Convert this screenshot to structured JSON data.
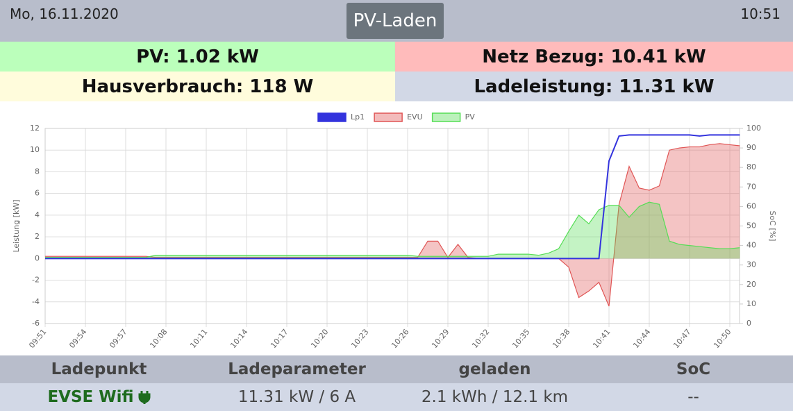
{
  "header": {
    "date": "Mo, 16.11.2020",
    "title": "PV-Laden",
    "time": "10:51"
  },
  "summary": {
    "pv": "PV: 1.02 kW",
    "grid": "Netz Bezug: 10.41 kW",
    "house": "Hausverbrauch: 118 W",
    "charge": "Ladeleistung: 11.31 kW"
  },
  "table": {
    "headers": [
      "Ladepunkt",
      "Ladeparameter",
      "geladen",
      "SoC"
    ],
    "rows": [
      [
        "EVSE Wifi",
        "11.31 kW / 6 A",
        "2.1 kWh / 12.1 km",
        "--"
      ]
    ]
  },
  "chart_data": {
    "type": "line",
    "y_label": "Leistung [kW]",
    "y2_label": "SoC [%]",
    "categories": [
      "09:51",
      null,
      null,
      null,
      "09:54",
      null,
      null,
      null,
      "09:57",
      null,
      null,
      null,
      "10:08",
      null,
      null,
      null,
      "10:11",
      null,
      null,
      null,
      "10:14",
      null,
      null,
      null,
      "10:17",
      null,
      null,
      null,
      "10:20",
      null,
      null,
      null,
      "10:23",
      null,
      null,
      null,
      "10:26",
      null,
      null,
      null,
      "10:29",
      null,
      null,
      null,
      "10:32",
      null,
      null,
      null,
      "10:35",
      null,
      null,
      null,
      "10:38",
      null,
      null,
      null,
      "10:41",
      null,
      null,
      null,
      "10:44",
      null,
      null,
      null,
      "10:47",
      null,
      null,
      null,
      "10:50",
      null
    ],
    "series": [
      {
        "name": "Lp1",
        "color": "#3333dd",
        "fill": false,
        "values": [
          0,
          0,
          0,
          0,
          0,
          0,
          0,
          0,
          0,
          0,
          0,
          0,
          0,
          0,
          0,
          0,
          0,
          0,
          0,
          0,
          0,
          0,
          0,
          0,
          0,
          0,
          0,
          0,
          0,
          0,
          0,
          0,
          0,
          0,
          0,
          0,
          0,
          0,
          0,
          0,
          0,
          0,
          0,
          0,
          0,
          0,
          0,
          0,
          0,
          0,
          0,
          0,
          0,
          0,
          0,
          0,
          9,
          11.3,
          11.4,
          11.4,
          11.4,
          11.4,
          11.4,
          11.4,
          11.4,
          11.3,
          11.4,
          11.4,
          11.4,
          11.4
        ]
      },
      {
        "name": "EVU",
        "color": "#e05555",
        "fill": true,
        "values": [
          0.2,
          0.2,
          0.2,
          0.2,
          0.2,
          0.2,
          0.2,
          0.2,
          0.2,
          0.2,
          0.2,
          0.1,
          0.1,
          0.1,
          0.1,
          0.1,
          0.1,
          0.1,
          0.1,
          0.1,
          0.1,
          0.1,
          0.1,
          0.1,
          0.1,
          0.1,
          0.1,
          0.1,
          0.1,
          0.1,
          0.1,
          0.1,
          0.1,
          0.1,
          0.1,
          0.1,
          0.1,
          0.1,
          1.6,
          1.6,
          0.1,
          1.3,
          0.1,
          0,
          0,
          0,
          0,
          0,
          0,
          0,
          0,
          0,
          -0.8,
          -3.6,
          -3,
          -2.2,
          -4.4,
          5,
          8.5,
          6.5,
          6.3,
          6.7,
          10,
          10.2,
          10.3,
          10.3,
          10.5,
          10.6,
          10.5,
          10.4
        ]
      },
      {
        "name": "PV",
        "color": "#55dd55",
        "fill": true,
        "values": [
          0.1,
          0.1,
          0.1,
          0.1,
          0.1,
          0.1,
          0.1,
          0.1,
          0.1,
          0.1,
          0.1,
          0.3,
          0.3,
          0.3,
          0.3,
          0.3,
          0.3,
          0.3,
          0.3,
          0.3,
          0.3,
          0.3,
          0.3,
          0.3,
          0.3,
          0.3,
          0.3,
          0.3,
          0.3,
          0.3,
          0.3,
          0.3,
          0.3,
          0.3,
          0.3,
          0.3,
          0.3,
          0.2,
          0.2,
          0.2,
          0.2,
          0.2,
          0.2,
          0.2,
          0.2,
          0.4,
          0.4,
          0.4,
          0.4,
          0.3,
          0.5,
          0.9,
          2.5,
          4,
          3.2,
          4.5,
          4.9,
          4.9,
          3.8,
          4.8,
          5.2,
          5,
          1.6,
          1.3,
          1.2,
          1.1,
          1,
          0.9,
          0.9,
          1
        ]
      }
    ],
    "ylim": [
      -6,
      12
    ],
    "yticks": [
      -6,
      -4,
      -2,
      0,
      2,
      4,
      6,
      8,
      10,
      12
    ],
    "y2lim": [
      0,
      100
    ],
    "y2ticks": [
      0,
      10,
      20,
      30,
      40,
      50,
      60,
      70,
      80,
      90,
      100
    ],
    "grid": true,
    "legend": "top"
  }
}
